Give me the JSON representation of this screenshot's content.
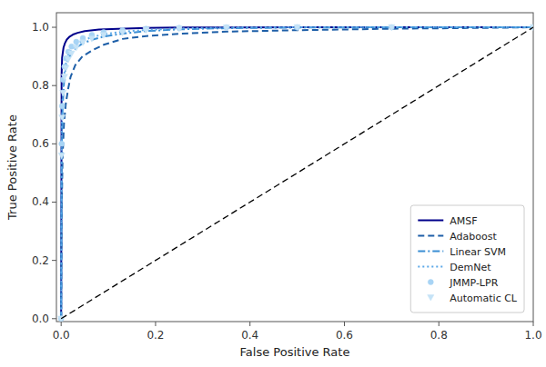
{
  "chart_data": {
    "type": "line",
    "xlabel": "False Positive Rate",
    "ylabel": "True Positive Rate",
    "xlim": [
      -0.01,
      1.0
    ],
    "ylim": [
      -0.01,
      1.05
    ],
    "xticks": [
      {
        "value": 0,
        "label": "0.0"
      },
      0.2,
      0.4,
      0.6,
      0.8,
      {
        "value": 1,
        "label": "1.0"
      }
    ],
    "yticks": [
      {
        "value": 0,
        "label": "0.0"
      },
      0.2,
      0.4,
      0.6,
      0.8,
      {
        "value": 1,
        "label": "1.0"
      }
    ],
    "grid": false,
    "legend": "lower right",
    "series": [
      {
        "name": "AMSF",
        "color": "#00008B",
        "line_style": "solid",
        "marker": "none",
        "x": [
          0.0,
          0.001,
          0.002,
          0.005,
          0.008,
          0.012,
          0.018,
          0.025,
          0.035,
          0.05,
          0.08,
          0.12,
          0.18,
          0.25,
          0.35,
          0.5,
          0.7,
          1.0
        ],
        "values": [
          0.0,
          0.84,
          0.895,
          0.93,
          0.945,
          0.958,
          0.968,
          0.975,
          0.981,
          0.987,
          0.992,
          0.995,
          0.998,
          0.999,
          0.9995,
          1.0,
          1.0,
          1.0
        ]
      },
      {
        "name": "Adaboost",
        "color": "#1E5FA8",
        "line_style": "dashed",
        "marker": "none",
        "x": [
          0.0,
          0.001,
          0.003,
          0.006,
          0.01,
          0.015,
          0.02,
          0.03,
          0.045,
          0.065,
          0.09,
          0.13,
          0.18,
          0.25,
          0.35,
          0.5,
          0.7,
          0.9,
          1.0
        ],
        "values": [
          0.0,
          0.35,
          0.55,
          0.67,
          0.74,
          0.79,
          0.83,
          0.87,
          0.9,
          0.92,
          0.94,
          0.96,
          0.97,
          0.978,
          0.985,
          0.99,
          0.995,
          0.998,
          1.0
        ]
      },
      {
        "name": "Linear SVM",
        "color": "#3A8ED4",
        "line_style": "dashdot",
        "marker": "none",
        "x": [
          0.0,
          0.001,
          0.003,
          0.006,
          0.01,
          0.015,
          0.022,
          0.032,
          0.046,
          0.065,
          0.09,
          0.13,
          0.18,
          0.25,
          0.35,
          0.5,
          0.7,
          1.0
        ],
        "values": [
          0.0,
          0.56,
          0.72,
          0.81,
          0.86,
          0.89,
          0.91,
          0.93,
          0.945,
          0.957,
          0.968,
          0.978,
          0.987,
          0.993,
          0.997,
          0.999,
          1.0,
          1.0
        ]
      },
      {
        "name": "DemNet",
        "color": "#5BA8E8",
        "line_style": "dotted",
        "marker": "none",
        "x": [
          0.0,
          0.001,
          0.003,
          0.006,
          0.01,
          0.015,
          0.022,
          0.032,
          0.046,
          0.065,
          0.09,
          0.13,
          0.18,
          0.25,
          0.35,
          0.5,
          0.7,
          1.0
        ],
        "values": [
          0.0,
          0.62,
          0.76,
          0.835,
          0.875,
          0.905,
          0.925,
          0.94,
          0.955,
          0.966,
          0.976,
          0.985,
          0.991,
          0.996,
          0.999,
          1.0,
          1.0,
          1.0
        ]
      },
      {
        "name": "JMMP-LPR",
        "color": "#A8D4F5",
        "line_style": "none",
        "marker": "circle",
        "x": [
          0.0,
          0.001,
          0.002,
          0.004,
          0.007,
          0.01,
          0.015,
          0.022,
          0.032,
          0.046,
          0.065,
          0.09,
          0.13,
          0.18,
          0.25,
          0.35,
          0.5,
          0.7,
          1.0
        ],
        "values": [
          0.0,
          0.6,
          0.73,
          0.82,
          0.865,
          0.893,
          0.916,
          0.934,
          0.95,
          0.963,
          0.974,
          0.983,
          0.99,
          0.995,
          0.998,
          1.0,
          1.0,
          1.0,
          1.0
        ]
      },
      {
        "name": "Automatic CL",
        "color": "#C5E3F7",
        "line_style": "none",
        "marker": "triangle-down",
        "x": [
          0.0,
          0.001,
          0.002,
          0.004,
          0.007,
          0.01,
          0.015,
          0.022,
          0.032,
          0.046,
          0.065,
          0.09,
          0.13,
          0.18,
          0.25,
          0.35,
          0.5,
          0.7,
          1.0
        ],
        "values": [
          0.0,
          0.56,
          0.69,
          0.775,
          0.83,
          0.86,
          0.89,
          0.91,
          0.93,
          0.948,
          0.961,
          0.973,
          0.982,
          0.99,
          0.996,
          0.999,
          1.0,
          1.0,
          1.0
        ]
      },
      {
        "color": "black",
        "line_style": "dashed",
        "marker": "none",
        "x": [
          0,
          1
        ],
        "values": [
          0,
          1
        ]
      }
    ]
  }
}
